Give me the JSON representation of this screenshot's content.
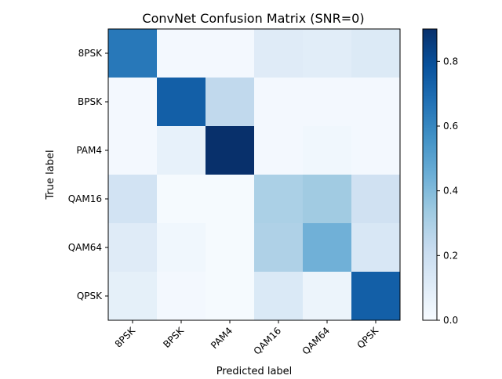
{
  "chart_data": {
    "type": "heatmap",
    "title": "ConvNet Confusion Matrix (SNR=0)",
    "xlabel": "Predicted label",
    "ylabel": "True label",
    "x_categories": [
      "8PSK",
      "BPSK",
      "PAM4",
      "QAM16",
      "QAM64",
      "QPSK"
    ],
    "y_categories": [
      "8PSK",
      "BPSK",
      "PAM4",
      "QAM16",
      "QAM64",
      "QPSK"
    ],
    "values": [
      [
        0.65,
        0.02,
        0.02,
        0.11,
        0.1,
        0.12
      ],
      [
        0.02,
        0.74,
        0.24,
        0.02,
        0.02,
        0.02
      ],
      [
        0.02,
        0.07,
        0.9,
        0.02,
        0.03,
        0.02
      ],
      [
        0.17,
        0.01,
        0.01,
        0.3,
        0.33,
        0.18
      ],
      [
        0.11,
        0.03,
        0.01,
        0.29,
        0.44,
        0.14
      ],
      [
        0.08,
        0.02,
        0.01,
        0.13,
        0.05,
        0.74
      ]
    ],
    "colorbar": {
      "range": [
        0,
        0.9
      ],
      "ticks": [
        0.0,
        0.2,
        0.4,
        0.6,
        0.8
      ],
      "tick_labels": [
        "0.0",
        "0.2",
        "0.4",
        "0.6",
        "0.8"
      ]
    },
    "colormap": [
      "#f7fbff",
      "#deebf7",
      "#c6dbef",
      "#9ecae1",
      "#6baed6",
      "#4292c6",
      "#2171b5",
      "#08519c",
      "#08306b"
    ]
  }
}
